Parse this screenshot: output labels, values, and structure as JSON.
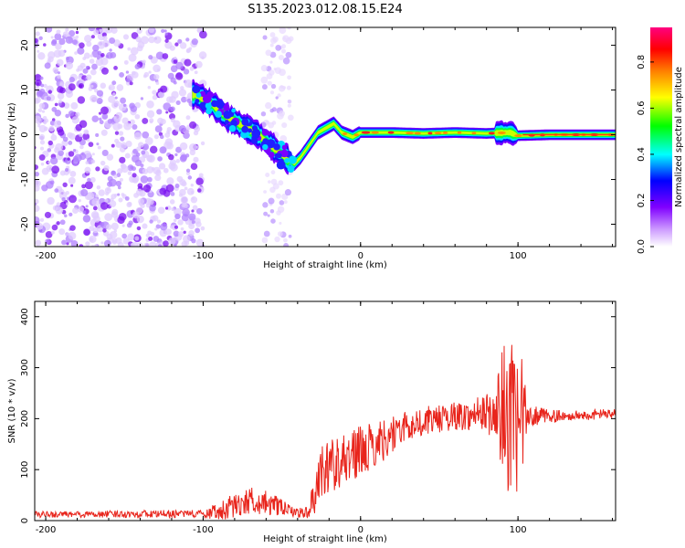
{
  "figure": {
    "title": "S135.2023.012.08.15.E24"
  },
  "chart_data": [
    {
      "type": "heatmap",
      "xlabel": "Height of straight line (km)",
      "ylabel": "Frequency (Hz)",
      "xlim": [
        -207,
        162
      ],
      "ylim": [
        -25,
        24
      ],
      "xticks": [
        -200,
        -100,
        0,
        100
      ],
      "yticks": [
        -20,
        -10,
        0,
        10,
        20
      ],
      "colorbar": {
        "label": "Normalized spectral amplitude",
        "range": [
          0,
          0.95
        ],
        "ticks": [
          0.0,
          0.2,
          0.4,
          0.6,
          0.8
        ],
        "colormap": [
          "#ffffff",
          "#cc99ff",
          "#8000ff",
          "#0000ff",
          "#00ffff",
          "#00ff00",
          "#ffff00",
          "#ff8000",
          "#ff0000",
          "#ff0080"
        ]
      },
      "ridge": [
        {
          "x": -105,
          "y": 9
        },
        {
          "x": -95,
          "y": 7
        },
        {
          "x": -85,
          "y": 4
        },
        {
          "x": -75,
          "y": 2
        },
        {
          "x": -65,
          "y": 0
        },
        {
          "x": -55,
          "y": -3
        },
        {
          "x": -48,
          "y": -5
        },
        {
          "x": -42,
          "y": -6.5
        },
        {
          "x": -38,
          "y": -5
        },
        {
          "x": -32,
          "y": -2
        },
        {
          "x": -27,
          "y": 0.5
        },
        {
          "x": -22,
          "y": 1.5
        },
        {
          "x": -17,
          "y": 2.5
        },
        {
          "x": -12,
          "y": 0.5
        },
        {
          "x": -5,
          "y": -0.5
        },
        {
          "x": 0,
          "y": 0.5
        },
        {
          "x": 20,
          "y": 0.5
        },
        {
          "x": 40,
          "y": 0.3
        },
        {
          "x": 60,
          "y": 0.5
        },
        {
          "x": 80,
          "y": 0.3
        },
        {
          "x": 95,
          "y": 0.5
        },
        {
          "x": 100,
          "y": -0.2
        },
        {
          "x": 120,
          "y": 0
        },
        {
          "x": 162,
          "y": 0
        }
      ]
    },
    {
      "type": "line",
      "xlabel": "Height of straight line (km)",
      "ylabel": "SNR (10 * v/v)",
      "xlim": [
        -207,
        162
      ],
      "ylim": [
        0,
        430
      ],
      "xticks": [
        -200,
        -100,
        0,
        100
      ],
      "yticks": [
        0,
        100,
        200,
        300,
        400
      ],
      "series": [
        {
          "color": "#e8251c",
          "values": [
            [
              -207,
              12
            ],
            [
              -180,
              12
            ],
            [
              -150,
              13
            ],
            [
              -120,
              13
            ],
            [
              -100,
              14
            ],
            [
              -90,
              18
            ],
            [
              -80,
              30
            ],
            [
              -70,
              40
            ],
            [
              -60,
              35
            ],
            [
              -50,
              25
            ],
            [
              -40,
              15
            ],
            [
              -33,
              18
            ],
            [
              -28,
              60
            ],
            [
              -24,
              110
            ],
            [
              -20,
              105
            ],
            [
              -10,
              125
            ],
            [
              0,
              135
            ],
            [
              10,
              150
            ],
            [
              20,
              170
            ],
            [
              30,
              185
            ],
            [
              40,
              195
            ],
            [
              50,
              200
            ],
            [
              60,
              205
            ],
            [
              70,
              205
            ],
            [
              80,
              210
            ],
            [
              90,
              205
            ],
            [
              95,
              200
            ],
            [
              100,
              190
            ],
            [
              105,
              200
            ],
            [
              110,
              205
            ],
            [
              130,
              205
            ],
            [
              150,
              208
            ],
            [
              162,
              210
            ]
          ],
          "noise": [
            [
              -207,
              6
            ],
            [
              -100,
              8
            ],
            [
              -90,
              20
            ],
            [
              -70,
              28
            ],
            [
              -55,
              22
            ],
            [
              -45,
              10
            ],
            [
              -33,
              12
            ],
            [
              -28,
              45
            ],
            [
              -22,
              60
            ],
            [
              -10,
              55
            ],
            [
              10,
              45
            ],
            [
              30,
              30
            ],
            [
              50,
              28
            ],
            [
              70,
              28
            ],
            [
              85,
              45
            ],
            [
              90,
              140
            ],
            [
              97,
              150
            ],
            [
              103,
              120
            ],
            [
              106,
              20
            ],
            [
              130,
              10
            ],
            [
              162,
              10
            ]
          ]
        }
      ]
    }
  ]
}
